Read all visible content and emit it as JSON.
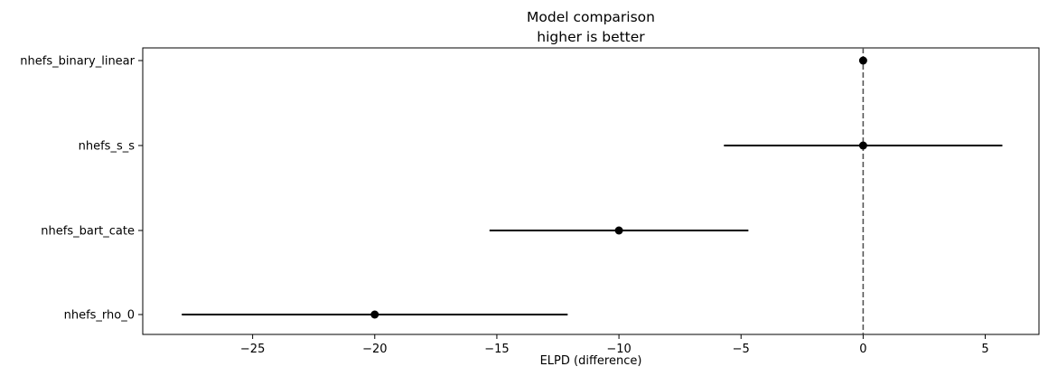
{
  "chart_data": {
    "type": "scatter",
    "title": "Model comparison",
    "subtitle": "higher is better",
    "xlabel": "ELPD (difference)",
    "ylabel": "",
    "xlim": [
      -29.5,
      7.2
    ],
    "xticks": [
      -25,
      -20,
      -15,
      -10,
      -5,
      0,
      5
    ],
    "xtick_labels": [
      "−25",
      "−20",
      "−15",
      "−10",
      "−5",
      "0",
      "5"
    ],
    "reference_line": 0,
    "grid": false,
    "models": [
      {
        "name": "nhefs_binary_linear",
        "elpd_diff": 0,
        "lower": 0,
        "upper": 0
      },
      {
        "name": "nhefs_s_s",
        "elpd_diff": 0,
        "lower": -5.7,
        "upper": 5.7
      },
      {
        "name": "nhefs_bart_cate",
        "elpd_diff": -10,
        "lower": -15.3,
        "upper": -4.7
      },
      {
        "name": "nhefs_rho_0",
        "elpd_diff": -20,
        "lower": -27.9,
        "upper": -12.1
      }
    ],
    "colors": {
      "marker": "#000000",
      "errorbar": "#000000",
      "reference_line": "#555555"
    }
  }
}
